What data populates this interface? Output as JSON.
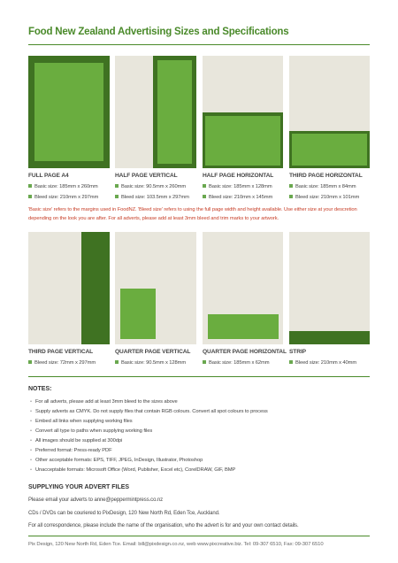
{
  "title": "Food New Zealand Advertising Sizes and Specifications",
  "ads": [
    {
      "name": "FULL PAGE A4",
      "specs": [
        "Basic size: 185mm x 260mm",
        "Bleed size: 210mm x 297mm"
      ]
    },
    {
      "name": "HALF PAGE VERTICAL",
      "specs": [
        "Basic size: 90.5mm x 260mm",
        "Bleed size: 103.5mm x 297mm"
      ]
    },
    {
      "name": "HALF PAGE HORIZONTAL",
      "specs": [
        "Basic size: 185mm x 128mm",
        "Bleed size: 210mm x 145mm"
      ]
    },
    {
      "name": "THIRD PAGE HORIZONTAL",
      "specs": [
        "Basic size: 185mm x 84mm",
        "Bleed size: 210mm x 101mm"
      ]
    },
    {
      "name": "THIRD PAGE VERTICAL",
      "specs": [
        "Bleed size: 72mm x 297mm"
      ]
    },
    {
      "name": "QUARTER PAGE VERTICAL",
      "specs": [
        "Basic size: 90.5mm x 128mm"
      ]
    },
    {
      "name": "QUARTER PAGE HORIZONTAL",
      "specs": [
        "Basic size: 185mm x 62mm"
      ]
    },
    {
      "name": "STRIP",
      "specs": [
        "Bleed size: 210mm x 40mm"
      ]
    }
  ],
  "size_note": "'Basic size' refers to the margins used in FoodNZ. 'Bleed size' refers to using the full page width and height available. Use either size at your descretion depending on the look you are after. For all adverts, please add at least 3mm bleed and trim marks to your artwork.",
  "notes": {
    "heading": "NOTES:",
    "items": [
      "For all adverts, please add at least 3mm bleed to the sizes above",
      "Supply adverts as CMYK. Do not supply files that contain RGB colours. Convert all spot colours to process",
      "Embed all links when supplying working files",
      "Convert all type to paths when supplying working files",
      "All images should be supplied at 300dpi",
      "Preferred format: Press-ready PDF",
      "Other acceptable formats: EPS, TIFF, JPEG, InDesign, Illustrator, Photoshop",
      "Unacceptable formats: Microsoft Office (Word, Publisher, Excel etc), CorelDRAW, GIF, BMP"
    ]
  },
  "supplying": {
    "heading": "SUPPLYING YOUR ADVERT FILES",
    "lines": [
      "Please email your adverts to anne@peppermintpress.co.nz",
      "CDs / DVDs can be couriered to PixDesign, 120 New North Rd, Eden Tce, Auckland.",
      "For all correspondence, please include the name of the organisation, who the advert is for and your own contact details."
    ]
  },
  "footer": "Pix Design, 120 New North Rd, Eden Tce. Email: bill@pixdesign.co.nz, web www.pixcreative.biz. Tel: 09-307 6510, Fax: 09-307 6510"
}
